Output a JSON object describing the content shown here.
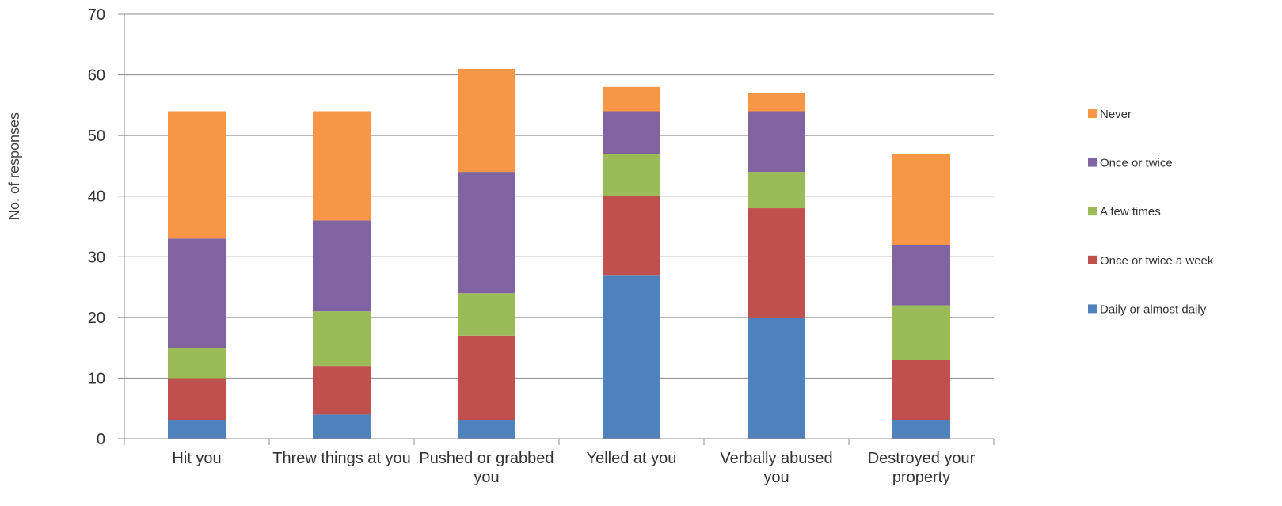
{
  "chart_data": {
    "type": "bar",
    "stacked": true,
    "title": "",
    "xlabel": "",
    "ylabel": "No. of responses",
    "ylim": [
      0,
      70
    ],
    "yticks": [
      0,
      10,
      20,
      30,
      40,
      50,
      60,
      70
    ],
    "grid": true,
    "legend_position": "right",
    "categories": [
      [
        "Hit you"
      ],
      [
        "Threw things at you"
      ],
      [
        "Pushed or grabbed",
        "you"
      ],
      [
        "Yelled at you"
      ],
      [
        "Verbally abused",
        "you"
      ],
      [
        "Destroyed your",
        "property"
      ]
    ],
    "series": [
      {
        "name": "Daily or almost daily",
        "color": "#4f81bd",
        "values": [
          3,
          4,
          3,
          27,
          20,
          3
        ]
      },
      {
        "name": "Once or twice a week",
        "color": "#c0504d",
        "values": [
          7,
          8,
          14,
          13,
          18,
          10
        ]
      },
      {
        "name": "A few times",
        "color": "#9bbb59",
        "values": [
          5,
          9,
          7,
          7,
          6,
          9
        ]
      },
      {
        "name": "Once or twice",
        "color": "#8064a2",
        "values": [
          18,
          15,
          20,
          7,
          10,
          10
        ]
      },
      {
        "name": "Never",
        "color": "#f79646",
        "values": [
          21,
          18,
          17,
          4,
          3,
          15
        ]
      }
    ]
  }
}
